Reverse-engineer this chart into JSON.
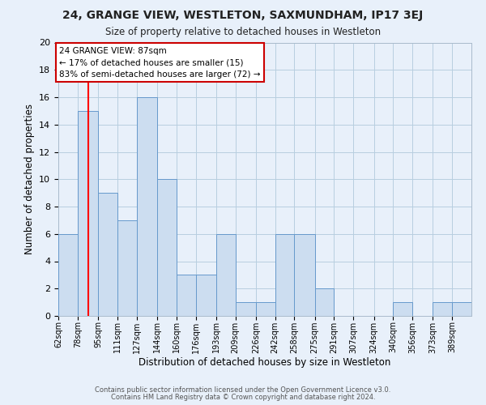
{
  "title": "24, GRANGE VIEW, WESTLETON, SAXMUNDHAM, IP17 3EJ",
  "subtitle": "Size of property relative to detached houses in Westleton",
  "xlabel": "Distribution of detached houses by size in Westleton",
  "ylabel": "Number of detached properties",
  "bin_edges": [
    62,
    78,
    95,
    111,
    127,
    144,
    160,
    176,
    193,
    209,
    226,
    242,
    258,
    275,
    291,
    307,
    324,
    340,
    356,
    373,
    389,
    405
  ],
  "bin_labels": [
    "62sqm",
    "78sqm",
    "95sqm",
    "111sqm",
    "127sqm",
    "144sqm",
    "160sqm",
    "176sqm",
    "193sqm",
    "209sqm",
    "226sqm",
    "242sqm",
    "258sqm",
    "275sqm",
    "291sqm",
    "307sqm",
    "324sqm",
    "340sqm",
    "356sqm",
    "373sqm",
    "389sqm"
  ],
  "counts": [
    6,
    15,
    9,
    7,
    16,
    10,
    3,
    3,
    6,
    1,
    1,
    6,
    6,
    2,
    0,
    0,
    0,
    1,
    0,
    1,
    1
  ],
  "bar_color": "#ccddf0",
  "bar_edge_color": "#6699cc",
  "grid_color": "#b8cee0",
  "background_color": "#e8f0fa",
  "red_line_x": 87,
  "annotation_text": "24 GRANGE VIEW: 87sqm\n← 17% of detached houses are smaller (15)\n83% of semi-detached houses are larger (72) →",
  "annotation_box_facecolor": "#ffffff",
  "annotation_box_edgecolor": "#cc0000",
  "ylim": [
    0,
    20
  ],
  "yticks": [
    0,
    2,
    4,
    6,
    8,
    10,
    12,
    14,
    16,
    18,
    20
  ],
  "footer_line1": "Contains HM Land Registry data © Crown copyright and database right 2024.",
  "footer_line2": "Contains public sector information licensed under the Open Government Licence v3.0."
}
